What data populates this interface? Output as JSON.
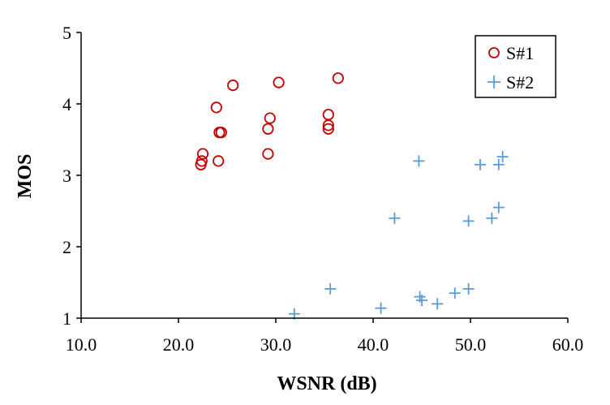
{
  "chart_data": {
    "type": "scatter",
    "title": "",
    "xlabel": "WSNR (dB)",
    "ylabel": "MOS",
    "xlim": [
      10,
      60
    ],
    "ylim": [
      1,
      5
    ],
    "x_ticks": [
      "10.0",
      "20.0",
      "30.0",
      "40.0",
      "50.0",
      "60.0"
    ],
    "y_ticks": [
      "1",
      "2",
      "3",
      "4",
      "5"
    ],
    "grid": false,
    "legend_position": "top-right",
    "series": [
      {
        "name": "S#1",
        "marker": "circle",
        "color": "#C00000",
        "points": [
          [
            22.3,
            3.15
          ],
          [
            22.4,
            3.2
          ],
          [
            22.5,
            3.3
          ],
          [
            23.9,
            3.95
          ],
          [
            24.1,
            3.2
          ],
          [
            24.2,
            3.6
          ],
          [
            24.4,
            3.6
          ],
          [
            25.6,
            4.26
          ],
          [
            29.2,
            3.3
          ],
          [
            29.2,
            3.65
          ],
          [
            29.4,
            3.8
          ],
          [
            30.3,
            4.3
          ],
          [
            35.4,
            3.85
          ],
          [
            35.4,
            3.7
          ],
          [
            35.4,
            3.65
          ],
          [
            36.4,
            4.36
          ]
        ]
      },
      {
        "name": "S#2",
        "marker": "plus",
        "color": "#5B9BD5",
        "points": [
          [
            31.9,
            1.06
          ],
          [
            35.6,
            1.41
          ],
          [
            40.8,
            1.14
          ],
          [
            42.2,
            2.4
          ],
          [
            44.7,
            3.2
          ],
          [
            44.8,
            1.3
          ],
          [
            45.0,
            1.25
          ],
          [
            46.6,
            1.2
          ],
          [
            48.4,
            1.35
          ],
          [
            49.8,
            2.36
          ],
          [
            49.8,
            1.41
          ],
          [
            51.0,
            3.15
          ],
          [
            52.2,
            2.4
          ],
          [
            52.9,
            2.55
          ],
          [
            52.9,
            3.15
          ],
          [
            53.3,
            3.26
          ]
        ]
      }
    ]
  }
}
